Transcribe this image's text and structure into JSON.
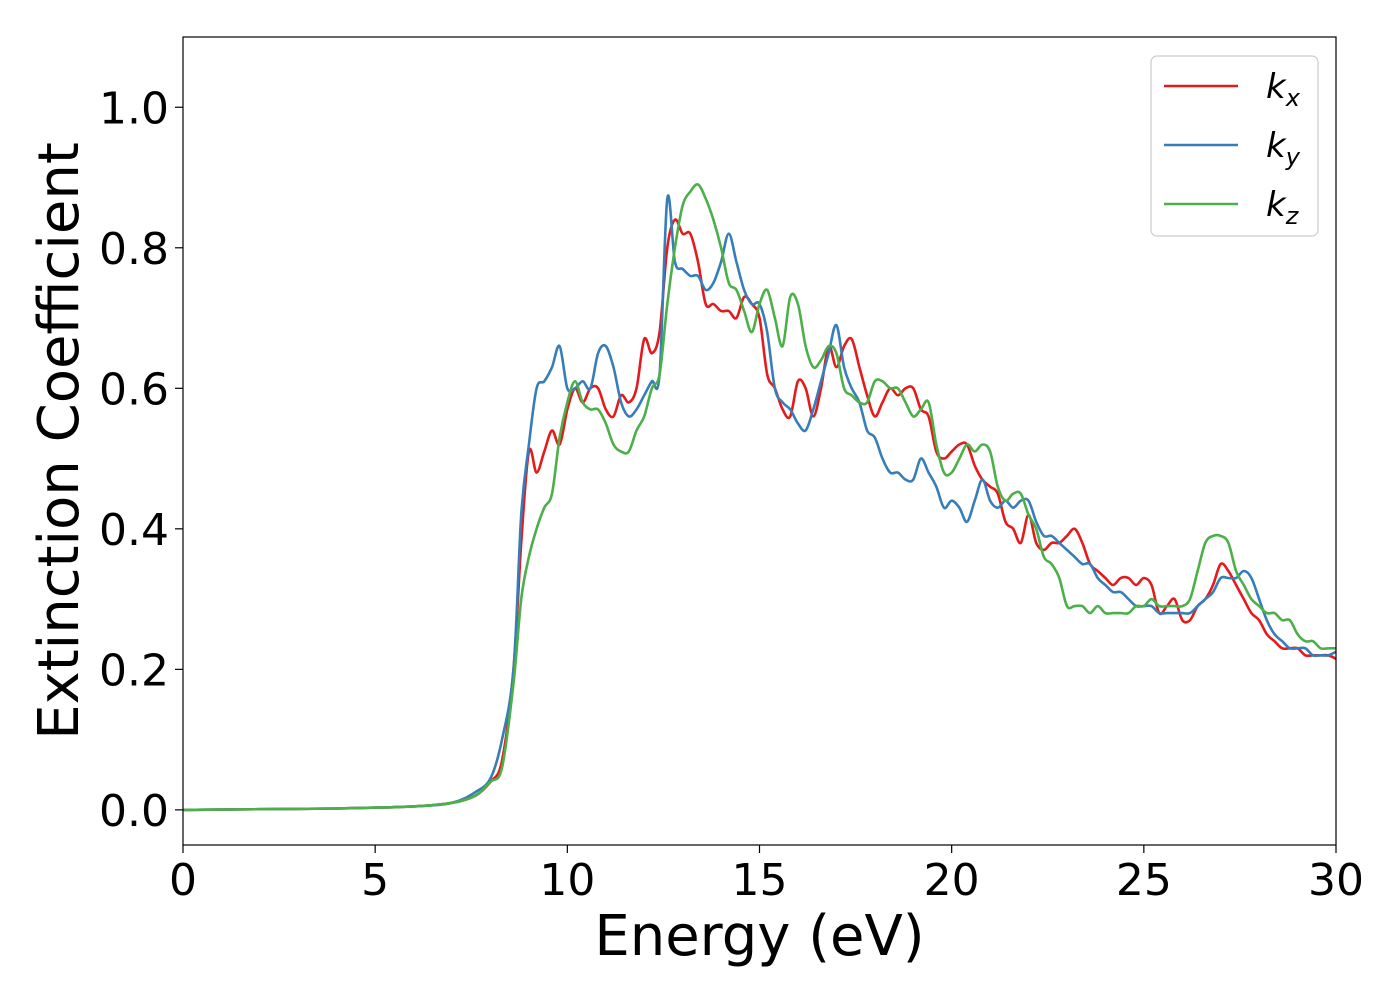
{
  "chart_data": {
    "type": "line",
    "xlabel": "Energy (eV)",
    "ylabel": "Extinction Coefficient",
    "xlim": [
      0,
      30
    ],
    "ylim": [
      -0.05,
      1.1
    ],
    "xticks": [
      0,
      5,
      10,
      15,
      20,
      25,
      30
    ],
    "xtick_labels": [
      "0",
      "5",
      "10",
      "15",
      "20",
      "25",
      "30"
    ],
    "yticks": [
      0.0,
      0.2,
      0.4,
      0.6,
      0.8,
      1.0
    ],
    "ytick_labels": [
      "0.0",
      "0.2",
      "0.4",
      "0.6",
      "0.8",
      "1.0"
    ],
    "grid": false,
    "legend_position": "top-right",
    "series": [
      {
        "name": "k",
        "subscript": "x",
        "color": "#e41a1c",
        "x": [
          0,
          2,
          4,
          6,
          7,
          7.6,
          8,
          8.3,
          8.6,
          8.8,
          9.0,
          9.2,
          9.4,
          9.6,
          9.8,
          10.0,
          10.2,
          10.4,
          10.6,
          10.8,
          11.0,
          11.2,
          11.4,
          11.6,
          11.8,
          12.0,
          12.2,
          12.4,
          12.6,
          12.8,
          13.0,
          13.2,
          13.4,
          13.6,
          13.8,
          14.0,
          14.2,
          14.4,
          14.6,
          14.8,
          15.0,
          15.2,
          15.4,
          15.6,
          15.8,
          16.0,
          16.2,
          16.4,
          16.6,
          16.8,
          17.0,
          17.2,
          17.4,
          17.6,
          17.8,
          18.0,
          18.2,
          18.4,
          18.6,
          18.8,
          19.0,
          19.2,
          19.4,
          19.6,
          19.8,
          20.0,
          20.2,
          20.4,
          20.6,
          20.8,
          21.0,
          21.2,
          21.4,
          21.6,
          21.8,
          22.0,
          22.2,
          22.4,
          22.6,
          22.8,
          23.0,
          23.2,
          23.4,
          23.6,
          23.8,
          24.0,
          24.2,
          24.4,
          24.6,
          24.8,
          25.0,
          25.2,
          25.4,
          25.6,
          25.8,
          26.0,
          26.2,
          26.4,
          26.6,
          26.8,
          27.0,
          27.2,
          27.4,
          27.6,
          27.8,
          28.0,
          28.2,
          28.4,
          28.6,
          28.8,
          29.0,
          29.2,
          29.4,
          29.6,
          29.8,
          30.0
        ],
        "values": [
          0.0,
          0.001,
          0.002,
          0.005,
          0.01,
          0.02,
          0.04,
          0.07,
          0.2,
          0.38,
          0.51,
          0.48,
          0.51,
          0.54,
          0.52,
          0.57,
          0.6,
          0.58,
          0.6,
          0.6,
          0.57,
          0.56,
          0.59,
          0.58,
          0.6,
          0.67,
          0.65,
          0.68,
          0.8,
          0.84,
          0.82,
          0.82,
          0.78,
          0.72,
          0.72,
          0.71,
          0.71,
          0.7,
          0.73,
          0.72,
          0.7,
          0.62,
          0.6,
          0.57,
          0.56,
          0.61,
          0.6,
          0.56,
          0.6,
          0.66,
          0.63,
          0.66,
          0.67,
          0.63,
          0.59,
          0.56,
          0.58,
          0.6,
          0.59,
          0.6,
          0.6,
          0.57,
          0.56,
          0.51,
          0.5,
          0.51,
          0.52,
          0.52,
          0.49,
          0.47,
          0.46,
          0.45,
          0.41,
          0.4,
          0.38,
          0.42,
          0.38,
          0.37,
          0.38,
          0.38,
          0.39,
          0.4,
          0.38,
          0.35,
          0.34,
          0.33,
          0.32,
          0.33,
          0.33,
          0.32,
          0.33,
          0.32,
          0.28,
          0.29,
          0.3,
          0.27,
          0.27,
          0.29,
          0.3,
          0.32,
          0.35,
          0.34,
          0.32,
          0.3,
          0.28,
          0.27,
          0.25,
          0.24,
          0.23,
          0.23,
          0.23,
          0.22,
          0.22,
          0.22,
          0.22,
          0.215
        ]
      },
      {
        "name": "k",
        "subscript": "y",
        "color": "#377eb8",
        "x": [
          0,
          2,
          4,
          6,
          7,
          7.6,
          8,
          8.3,
          8.6,
          8.8,
          9.0,
          9.2,
          9.4,
          9.6,
          9.8,
          10.0,
          10.2,
          10.4,
          10.6,
          10.8,
          11.0,
          11.2,
          11.4,
          11.6,
          11.8,
          12.0,
          12.2,
          12.4,
          12.6,
          12.8,
          13.0,
          13.2,
          13.4,
          13.6,
          13.8,
          14.0,
          14.2,
          14.4,
          14.6,
          14.8,
          15.0,
          15.2,
          15.4,
          15.6,
          15.8,
          16.0,
          16.2,
          16.4,
          16.6,
          16.8,
          17.0,
          17.2,
          17.4,
          17.6,
          17.8,
          18.0,
          18.2,
          18.4,
          18.6,
          18.8,
          19.0,
          19.2,
          19.4,
          19.6,
          19.8,
          20.0,
          20.2,
          20.4,
          20.6,
          20.8,
          21.0,
          21.2,
          21.4,
          21.6,
          21.8,
          22.0,
          22.2,
          22.4,
          22.6,
          22.8,
          23.0,
          23.2,
          23.4,
          23.6,
          23.8,
          24.0,
          24.2,
          24.4,
          24.6,
          24.8,
          25.0,
          25.2,
          25.4,
          25.6,
          25.8,
          26.0,
          26.2,
          26.4,
          26.6,
          26.8,
          27.0,
          27.2,
          27.4,
          27.6,
          27.8,
          28.0,
          28.2,
          28.4,
          28.6,
          28.8,
          29.0,
          29.2,
          29.4,
          29.6,
          29.8,
          30.0
        ],
        "values": [
          0.0,
          0.001,
          0.002,
          0.005,
          0.01,
          0.025,
          0.045,
          0.1,
          0.2,
          0.42,
          0.52,
          0.6,
          0.61,
          0.63,
          0.66,
          0.6,
          0.6,
          0.61,
          0.6,
          0.65,
          0.66,
          0.63,
          0.58,
          0.56,
          0.57,
          0.59,
          0.61,
          0.62,
          0.87,
          0.78,
          0.77,
          0.76,
          0.76,
          0.74,
          0.75,
          0.78,
          0.82,
          0.78,
          0.74,
          0.72,
          0.72,
          0.68,
          0.6,
          0.58,
          0.57,
          0.55,
          0.54,
          0.57,
          0.61,
          0.65,
          0.69,
          0.63,
          0.6,
          0.58,
          0.54,
          0.53,
          0.5,
          0.48,
          0.48,
          0.47,
          0.47,
          0.5,
          0.48,
          0.46,
          0.43,
          0.44,
          0.43,
          0.41,
          0.44,
          0.47,
          0.44,
          0.43,
          0.44,
          0.43,
          0.44,
          0.44,
          0.41,
          0.39,
          0.39,
          0.38,
          0.37,
          0.36,
          0.35,
          0.35,
          0.33,
          0.32,
          0.31,
          0.31,
          0.3,
          0.29,
          0.29,
          0.29,
          0.28,
          0.28,
          0.28,
          0.28,
          0.28,
          0.29,
          0.3,
          0.31,
          0.33,
          0.33,
          0.33,
          0.34,
          0.33,
          0.3,
          0.27,
          0.25,
          0.24,
          0.23,
          0.23,
          0.23,
          0.22,
          0.22,
          0.22,
          0.225
        ]
      },
      {
        "name": "k",
        "subscript": "z",
        "color": "#4daf4a",
        "x": [
          0,
          2,
          4,
          6,
          7,
          7.6,
          8,
          8.3,
          8.6,
          8.8,
          9.0,
          9.2,
          9.4,
          9.6,
          9.8,
          10.0,
          10.2,
          10.4,
          10.6,
          10.8,
          11.0,
          11.2,
          11.4,
          11.6,
          11.8,
          12.0,
          12.2,
          12.4,
          12.6,
          12.8,
          13.0,
          13.2,
          13.4,
          13.6,
          13.8,
          14.0,
          14.2,
          14.4,
          14.6,
          14.8,
          15.0,
          15.2,
          15.4,
          15.6,
          15.8,
          16.0,
          16.2,
          16.4,
          16.6,
          16.8,
          17.0,
          17.2,
          17.4,
          17.6,
          17.8,
          18.0,
          18.2,
          18.4,
          18.6,
          18.8,
          19.0,
          19.2,
          19.4,
          19.6,
          19.8,
          20.0,
          20.2,
          20.4,
          20.6,
          20.8,
          21.0,
          21.2,
          21.4,
          21.6,
          21.8,
          22.0,
          22.2,
          22.4,
          22.6,
          22.8,
          23.0,
          23.2,
          23.4,
          23.6,
          23.8,
          24.0,
          24.2,
          24.4,
          24.6,
          24.8,
          25.0,
          25.2,
          25.4,
          25.6,
          25.8,
          26.0,
          26.2,
          26.4,
          26.6,
          26.8,
          27.0,
          27.2,
          27.4,
          27.6,
          27.8,
          28.0,
          28.2,
          28.4,
          28.6,
          28.8,
          29.0,
          29.2,
          29.4,
          29.6,
          29.8,
          30.0
        ],
        "values": [
          0.0,
          0.001,
          0.002,
          0.005,
          0.01,
          0.02,
          0.04,
          0.06,
          0.18,
          0.3,
          0.36,
          0.4,
          0.43,
          0.45,
          0.53,
          0.58,
          0.61,
          0.58,
          0.57,
          0.57,
          0.55,
          0.52,
          0.51,
          0.51,
          0.54,
          0.56,
          0.6,
          0.62,
          0.72,
          0.8,
          0.86,
          0.88,
          0.89,
          0.87,
          0.84,
          0.8,
          0.75,
          0.74,
          0.71,
          0.68,
          0.72,
          0.74,
          0.7,
          0.66,
          0.73,
          0.72,
          0.66,
          0.63,
          0.64,
          0.66,
          0.65,
          0.6,
          0.59,
          0.58,
          0.58,
          0.61,
          0.61,
          0.6,
          0.6,
          0.58,
          0.56,
          0.57,
          0.58,
          0.52,
          0.48,
          0.48,
          0.5,
          0.52,
          0.51,
          0.52,
          0.51,
          0.46,
          0.44,
          0.45,
          0.45,
          0.42,
          0.4,
          0.36,
          0.35,
          0.33,
          0.29,
          0.29,
          0.29,
          0.28,
          0.29,
          0.28,
          0.28,
          0.28,
          0.28,
          0.29,
          0.29,
          0.3,
          0.29,
          0.29,
          0.29,
          0.29,
          0.3,
          0.34,
          0.38,
          0.39,
          0.39,
          0.38,
          0.34,
          0.32,
          0.3,
          0.29,
          0.28,
          0.28,
          0.27,
          0.27,
          0.25,
          0.24,
          0.24,
          0.23,
          0.23,
          0.23
        ]
      }
    ]
  }
}
